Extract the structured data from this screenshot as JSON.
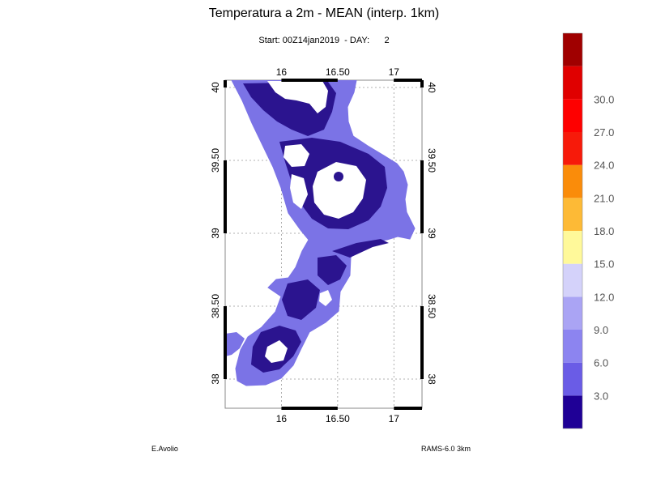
{
  "title": "Temperatura a 2m - MEAN (interp. 1km)",
  "subtitle": "Start: 00Z14jan2019  - DAY:      2",
  "author": "E.Avolio",
  "model": "RAMS-6.0 3km",
  "map": {
    "lon_range": [
      15.5,
      17.25
    ],
    "lat_range": [
      37.8,
      40.05
    ],
    "lon_ticks": [
      {
        "v": 16,
        "label": "16"
      },
      {
        "v": 16.5,
        "label": "16.50"
      },
      {
        "v": 17,
        "label": "17"
      }
    ],
    "lat_ticks": [
      {
        "v": 38,
        "label": "38"
      },
      {
        "v": 38.5,
        "label": "38.50"
      },
      {
        "v": 39,
        "label": "39"
      },
      {
        "v": 39.5,
        "label": "39.50"
      },
      {
        "v": 40,
        "label": "40"
      }
    ],
    "grid": true,
    "land_color": "#7b73e6",
    "cold_color": "#2b148f",
    "snow_color": "#ffffff"
  },
  "colorbar": {
    "colors": [
      "#1f0096",
      "#6a5ce6",
      "#8c84f0",
      "#aaa4f4",
      "#d4d2fa",
      "#fff99a",
      "#fdba36",
      "#fa8c0a",
      "#f71a0a",
      "#fe0000",
      "#e00000",
      "#a00000"
    ],
    "labels": [
      "3.0",
      "6.0",
      "9.0",
      "12.0",
      "15.0",
      "18.0",
      "21.0",
      "24.0",
      "27.0",
      "30.0"
    ]
  }
}
